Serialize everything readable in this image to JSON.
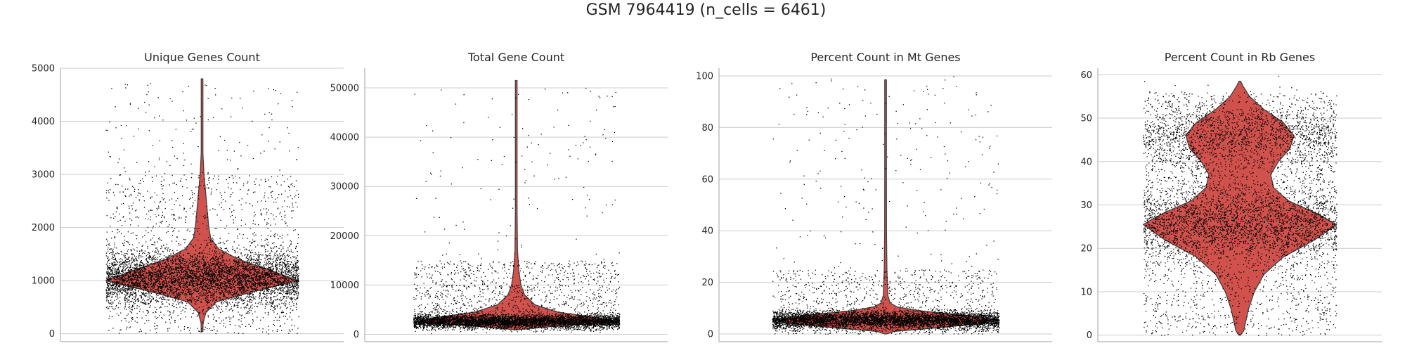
{
  "title": "GSM 7964419 (n_cells = 6461)",
  "colors": {
    "violin_fill": "#d1524d",
    "violin_edge": "#404040",
    "points": "#000000",
    "grid": "#cccccc"
  },
  "chart_data": [
    {
      "type": "violin",
      "title": "Unique Genes Count",
      "ylim": [
        -150,
        5000
      ],
      "yticks": [
        0,
        1000,
        2000,
        3000,
        4000,
        5000
      ],
      "n_points": 6461,
      "violin_profile": [
        [
          40,
          0
        ],
        [
          200,
          0.01
        ],
        [
          400,
          0.04
        ],
        [
          600,
          0.15
        ],
        [
          800,
          0.55
        ],
        [
          1000,
          1.0
        ],
        [
          1200,
          0.7
        ],
        [
          1400,
          0.38
        ],
        [
          1600,
          0.17
        ],
        [
          1800,
          0.09
        ],
        [
          2000,
          0.07
        ],
        [
          2300,
          0.055
        ],
        [
          2600,
          0.04
        ],
        [
          3000,
          0.02
        ],
        [
          3400,
          0.008
        ],
        [
          4000,
          0.004
        ],
        [
          4800,
          0.003
        ]
      ],
      "point_clusters": [
        {
          "center": 1050,
          "sd": 260,
          "weight": 0.78
        },
        {
          "min": 0,
          "max": 3000,
          "weight": 0.2
        },
        {
          "min": 3000,
          "max": 4800,
          "weight": 0.02
        }
      ]
    },
    {
      "type": "violin",
      "title": "Total Gene Count",
      "ylim": [
        -1500,
        54000
      ],
      "yticks": [
        0,
        10000,
        20000,
        30000,
        40000,
        50000
      ],
      "n_points": 6461,
      "violin_profile": [
        [
          900,
          0
        ],
        [
          1500,
          0.3
        ],
        [
          2500,
          1.0
        ],
        [
          3500,
          0.75
        ],
        [
          4500,
          0.4
        ],
        [
          6000,
          0.18
        ],
        [
          8000,
          0.08
        ],
        [
          10000,
          0.045
        ],
        [
          13000,
          0.025
        ],
        [
          17000,
          0.012
        ],
        [
          25000,
          0.006
        ],
        [
          35000,
          0.004
        ],
        [
          51500,
          0.003
        ]
      ],
      "point_clusters": [
        {
          "center": 2700,
          "sd": 700,
          "weight": 0.8
        },
        {
          "min": 1000,
          "max": 15000,
          "weight": 0.18
        },
        {
          "min": 15000,
          "max": 51000,
          "weight": 0.02
        }
      ]
    },
    {
      "type": "violin",
      "title": "Percent Count in Mt Genes",
      "ylim": [
        -3,
        103
      ],
      "yticks": [
        0,
        20,
        40,
        60,
        80,
        100
      ],
      "n_points": 6461,
      "violin_profile": [
        [
          0,
          0
        ],
        [
          1,
          0.08
        ],
        [
          2,
          0.35
        ],
        [
          4,
          0.85
        ],
        [
          5.5,
          1.0
        ],
        [
          7,
          0.75
        ],
        [
          9,
          0.3
        ],
        [
          10.5,
          0.1
        ],
        [
          12,
          0.04
        ],
        [
          15,
          0.02
        ],
        [
          25,
          0.012
        ],
        [
          40,
          0.008
        ],
        [
          60,
          0.006
        ],
        [
          80,
          0.005
        ],
        [
          98.5,
          0.004
        ]
      ],
      "point_clusters": [
        {
          "center": 5.5,
          "sd": 1.7,
          "weight": 0.83
        },
        {
          "min": 0,
          "max": 25,
          "weight": 0.14
        },
        {
          "min": 25,
          "max": 100,
          "weight": 0.03
        }
      ]
    },
    {
      "type": "violin",
      "title": "Percent Count in Rb Genes",
      "ylim": [
        -1.5,
        61.5
      ],
      "yticks": [
        0,
        10,
        20,
        30,
        40,
        50,
        60
      ],
      "n_points": 6461,
      "violin_profile": [
        [
          0,
          0
        ],
        [
          1,
          0.04
        ],
        [
          3,
          0.06
        ],
        [
          6,
          0.09
        ],
        [
          10,
          0.15
        ],
        [
          14,
          0.25
        ],
        [
          18,
          0.45
        ],
        [
          22,
          0.78
        ],
        [
          25.5,
          1.0
        ],
        [
          28,
          0.8
        ],
        [
          31,
          0.5
        ],
        [
          34,
          0.35
        ],
        [
          37,
          0.32
        ],
        [
          40,
          0.4
        ],
        [
          43,
          0.52
        ],
        [
          46,
          0.56
        ],
        [
          49,
          0.45
        ],
        [
          52,
          0.25
        ],
        [
          55,
          0.1
        ],
        [
          57.5,
          0.03
        ],
        [
          58.5,
          0
        ]
      ],
      "point_clusters": [
        {
          "center": 26,
          "sd": 4.5,
          "weight": 0.42
        },
        {
          "center": 46,
          "sd": 4.0,
          "weight": 0.25
        },
        {
          "min": 0,
          "max": 56,
          "weight": 0.33
        }
      ]
    }
  ]
}
